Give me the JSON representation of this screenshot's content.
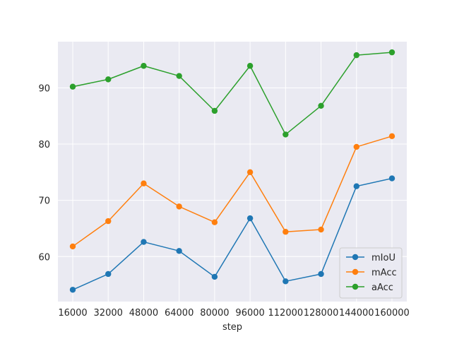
{
  "chart_data": {
    "type": "line",
    "title": "",
    "xlabel": "step",
    "ylabel": "",
    "x": [
      16000,
      32000,
      48000,
      64000,
      80000,
      96000,
      112000,
      128000,
      144000,
      160000
    ],
    "x_tick_labels": [
      "16000",
      "32000",
      "48000",
      "64000",
      "80000",
      "96000",
      "112000",
      "128000",
      "144000",
      "160000"
    ],
    "y_ticks": [
      60,
      70,
      80,
      90
    ],
    "y_tick_labels": [
      "60",
      "70",
      "80",
      "90"
    ],
    "ylim": [
      52,
      98.2
    ],
    "grid": true,
    "legend_position": "lower-right",
    "series": [
      {
        "name": "mIoU",
        "color": "#1f77b4",
        "values": [
          54.1,
          56.9,
          62.6,
          61.0,
          56.4,
          66.8,
          55.6,
          56.9,
          72.5,
          73.9
        ]
      },
      {
        "name": "mAcc",
        "color": "#ff7f0e",
        "values": [
          61.8,
          66.3,
          73.0,
          68.9,
          66.1,
          75.0,
          64.4,
          64.8,
          79.5,
          81.4
        ]
      },
      {
        "name": "aAcc",
        "color": "#2ca02c",
        "values": [
          90.2,
          91.5,
          93.9,
          92.1,
          85.9,
          93.9,
          81.7,
          86.8,
          95.8,
          96.3
        ]
      }
    ]
  }
}
